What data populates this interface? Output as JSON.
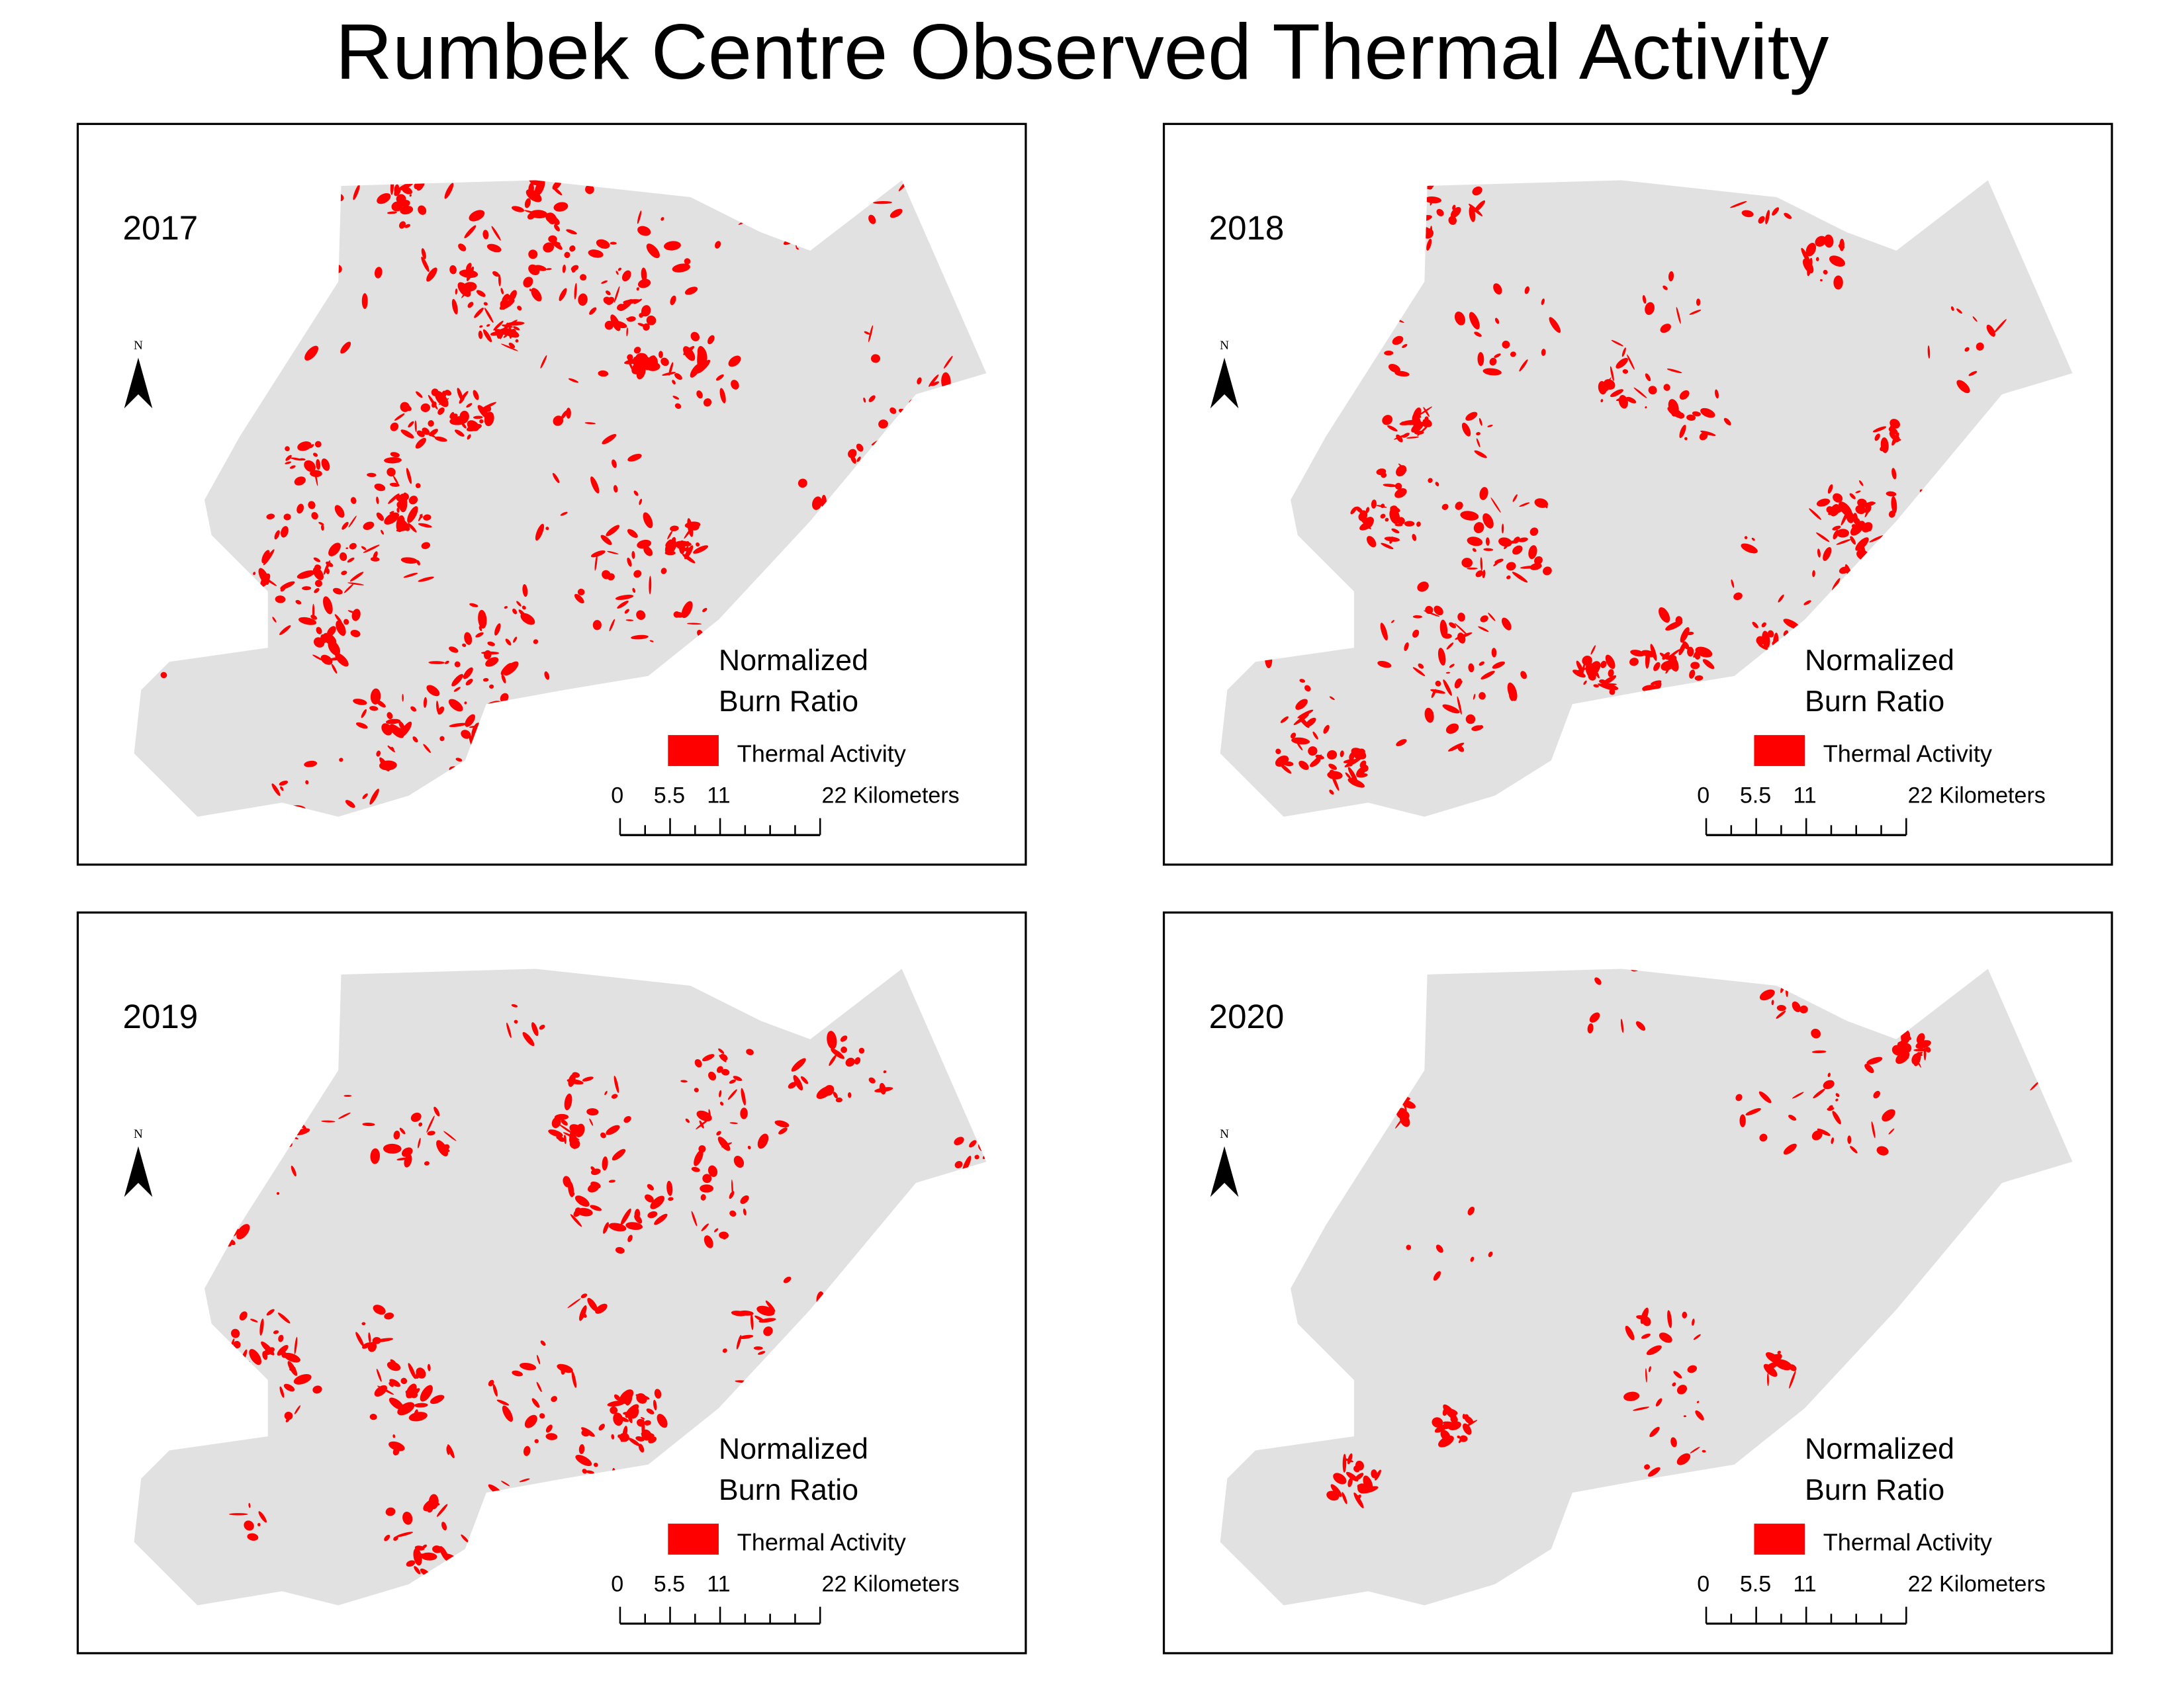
{
  "title": "Rumbek Centre Observed Thermal Activity",
  "panels": [
    {
      "year": "2017"
    },
    {
      "year": "2018"
    },
    {
      "year": "2019"
    },
    {
      "year": "2020"
    }
  ],
  "north": "N",
  "legend": {
    "title_line1": "Normalized",
    "title_line2": "Burn Ratio",
    "item": "Thermal Activity"
  },
  "scale_bar": {
    "labels": [
      "0",
      "5.5",
      "11",
      "22 Kilometers"
    ]
  }
}
